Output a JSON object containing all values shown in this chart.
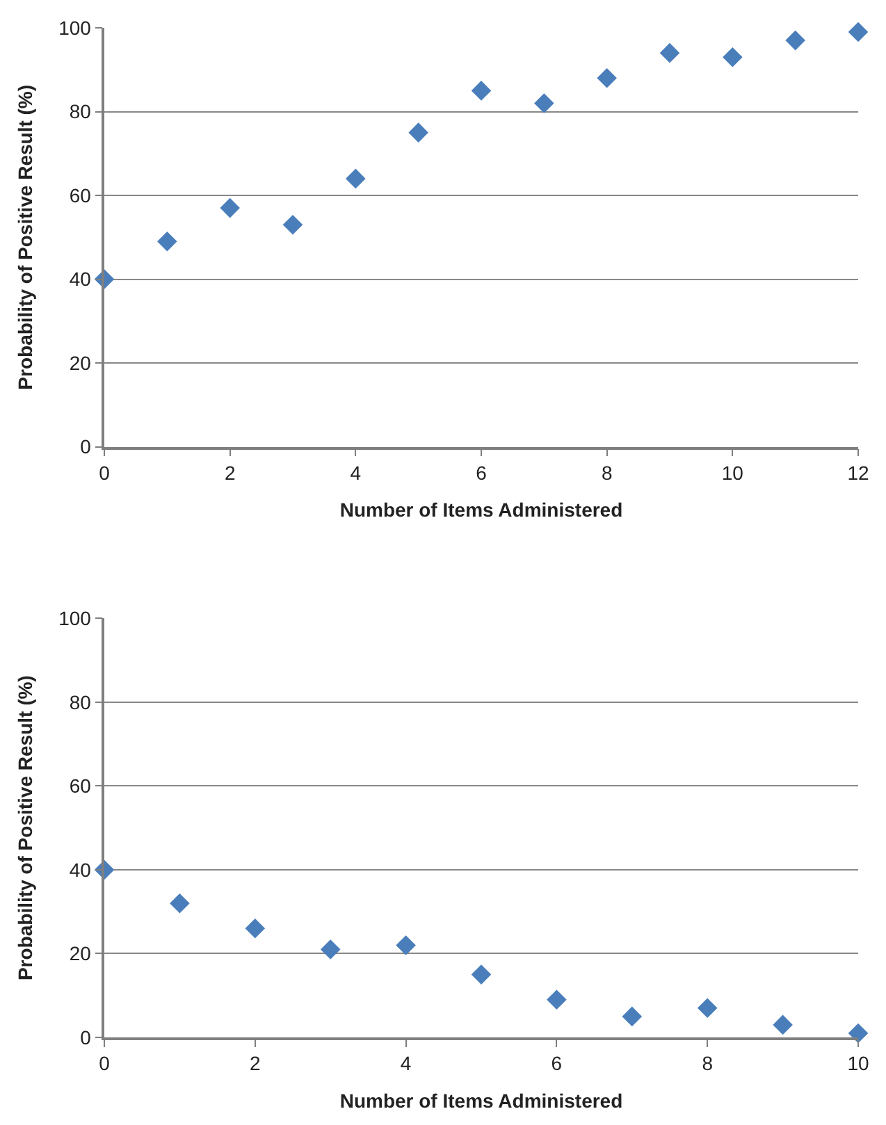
{
  "chart_data": [
    {
      "type": "scatter",
      "xlabel": "Number of Items Administered",
      "ylabel": "Probability of Positive Result (%)",
      "x": [
        0,
        1,
        2,
        3,
        4,
        5,
        6,
        7,
        8,
        9,
        10,
        11,
        12
      ],
      "series": [
        {
          "color": "#4a7ebb",
          "values": [
            40,
            49,
            57,
            53,
            64,
            75,
            85,
            82,
            88,
            94,
            93,
            97,
            99
          ]
        }
      ],
      "xlim": [
        0,
        12
      ],
      "xticks": [
        0,
        2,
        4,
        6,
        8,
        10,
        12
      ],
      "ylim": [
        0,
        100
      ],
      "yticks": [
        0,
        20,
        40,
        60,
        80,
        100
      ],
      "grid": "y",
      "marker": "diamond"
    },
    {
      "type": "scatter",
      "xlabel": "Number of Items Administered",
      "ylabel": "Probability of Positive Result (%)",
      "x": [
        0,
        1,
        2,
        3,
        4,
        5,
        6,
        7,
        8,
        9,
        10
      ],
      "series": [
        {
          "color": "#4a7ebb",
          "values": [
            40,
            32,
            26,
            21,
            22,
            15,
            9,
            5,
            7,
            3,
            1
          ]
        }
      ],
      "xlim": [
        0,
        10
      ],
      "xticks": [
        0,
        2,
        4,
        6,
        8,
        10
      ],
      "ylim": [
        0,
        100
      ],
      "yticks": [
        0,
        20,
        40,
        60,
        80,
        100
      ],
      "grid": "y",
      "marker": "diamond"
    }
  ]
}
